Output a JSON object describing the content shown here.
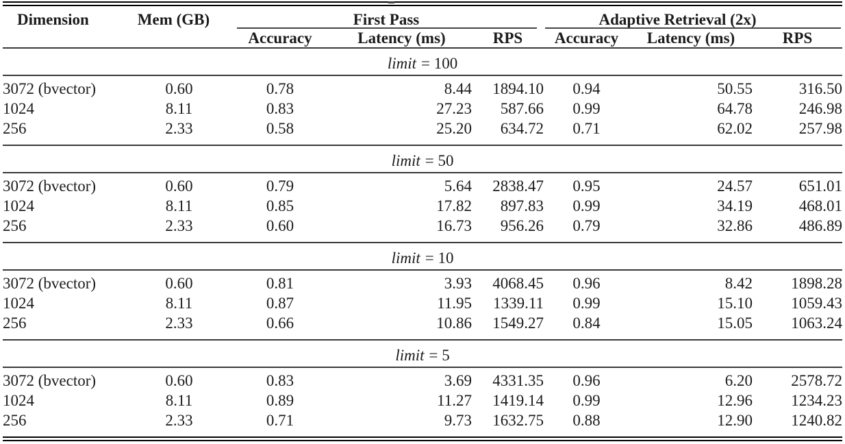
{
  "page": {
    "background": "#ffffff",
    "rule_color": "#000000",
    "text_color": "#1b1b1b"
  },
  "table": {
    "columns": {
      "dimension": "Dimension",
      "mem": "Mem (GB)",
      "group_first_pass": "First Pass",
      "group_adaptive": "Adaptive Retrieval (2x)",
      "sub": {
        "accuracy": "Accuracy",
        "latency": "Latency (ms)",
        "rps": "RPS"
      }
    },
    "sections": [
      {
        "limit_var": "limit",
        "limit_eq": "= 100",
        "rows": [
          {
            "dimension": "3072 (bvector)",
            "mem": "0.60",
            "fp_accuracy": "0.78",
            "fp_latency": "8.44",
            "fp_rps": "1894.10",
            "ar_accuracy": "0.94",
            "ar_latency": "50.55",
            "ar_rps": "316.50"
          },
          {
            "dimension": "1024",
            "mem": "8.11",
            "fp_accuracy": "0.83",
            "fp_latency": "27.23",
            "fp_rps": "587.66",
            "ar_accuracy": "0.99",
            "ar_latency": "64.78",
            "ar_rps": "246.98"
          },
          {
            "dimension": "256",
            "mem": "2.33",
            "fp_accuracy": "0.58",
            "fp_latency": "25.20",
            "fp_rps": "634.72",
            "ar_accuracy": "0.71",
            "ar_latency": "62.02",
            "ar_rps": "257.98"
          }
        ]
      },
      {
        "limit_var": "limit",
        "limit_eq": "= 50",
        "rows": [
          {
            "dimension": "3072 (bvector)",
            "mem": "0.60",
            "fp_accuracy": "0.79",
            "fp_latency": "5.64",
            "fp_rps": "2838.47",
            "ar_accuracy": "0.95",
            "ar_latency": "24.57",
            "ar_rps": "651.01"
          },
          {
            "dimension": "1024",
            "mem": "8.11",
            "fp_accuracy": "0.85",
            "fp_latency": "17.82",
            "fp_rps": "897.83",
            "ar_accuracy": "0.99",
            "ar_latency": "34.19",
            "ar_rps": "468.01"
          },
          {
            "dimension": "256",
            "mem": "2.33",
            "fp_accuracy": "0.60",
            "fp_latency": "16.73",
            "fp_rps": "956.26",
            "ar_accuracy": "0.79",
            "ar_latency": "32.86",
            "ar_rps": "486.89"
          }
        ]
      },
      {
        "limit_var": "limit",
        "limit_eq": "= 10",
        "rows": [
          {
            "dimension": "3072 (bvector)",
            "mem": "0.60",
            "fp_accuracy": "0.81",
            "fp_latency": "3.93",
            "fp_rps": "4068.45",
            "ar_accuracy": "0.96",
            "ar_latency": "8.42",
            "ar_rps": "1898.28"
          },
          {
            "dimension": "1024",
            "mem": "8.11",
            "fp_accuracy": "0.87",
            "fp_latency": "11.95",
            "fp_rps": "1339.11",
            "ar_accuracy": "0.99",
            "ar_latency": "15.10",
            "ar_rps": "1059.43"
          },
          {
            "dimension": "256",
            "mem": "2.33",
            "fp_accuracy": "0.66",
            "fp_latency": "10.86",
            "fp_rps": "1549.27",
            "ar_accuracy": "0.84",
            "ar_latency": "15.05",
            "ar_rps": "1063.24"
          }
        ]
      },
      {
        "limit_var": "limit",
        "limit_eq": "= 5",
        "rows": [
          {
            "dimension": "3072 (bvector)",
            "mem": "0.60",
            "fp_accuracy": "0.83",
            "fp_latency": "3.69",
            "fp_rps": "4331.35",
            "ar_accuracy": "0.96",
            "ar_latency": "6.20",
            "ar_rps": "2578.72"
          },
          {
            "dimension": "1024",
            "mem": "8.11",
            "fp_accuracy": "0.89",
            "fp_latency": "11.27",
            "fp_rps": "1419.14",
            "ar_accuracy": "0.99",
            "ar_latency": "12.96",
            "ar_rps": "1234.23"
          },
          {
            "dimension": "256",
            "mem": "2.33",
            "fp_accuracy": "0.71",
            "fp_latency": "9.73",
            "fp_rps": "1632.75",
            "ar_accuracy": "0.88",
            "ar_latency": "12.90",
            "ar_rps": "1240.82"
          }
        ]
      }
    ]
  }
}
